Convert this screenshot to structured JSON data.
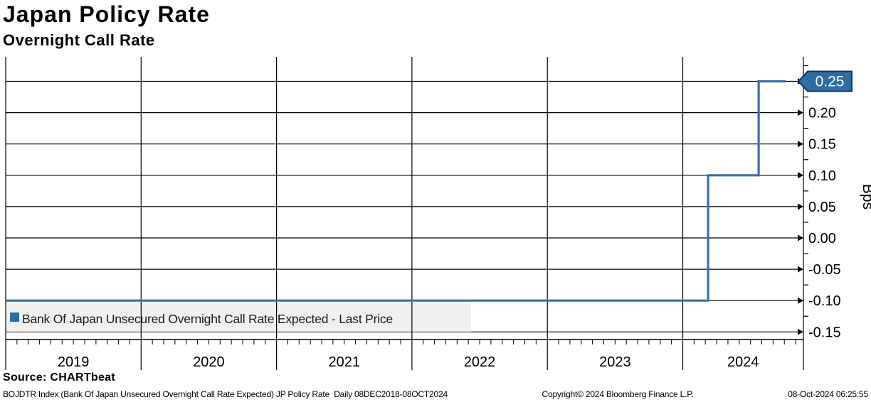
{
  "header": {
    "title": "Japan Policy Rate",
    "subtitle": "Overnight Call Rate"
  },
  "source_line": "Source: CHARTbeat",
  "footer": {
    "left": "BOJDTR Index (Bank Of Japan Unsecured Overnight Call Rate Expected) JP Policy Rate  Daily 08DEC2018-08OCT2024",
    "center": "Copyright© 2024 Bloomberg Finance L.P.",
    "right": "08-Oct-2024 06:25:55"
  },
  "chart_data": {
    "type": "line",
    "subtype": "step",
    "title": "Japan Policy Rate",
    "subtitle": "Overnight Call Rate",
    "xlabel": "",
    "ylabel": "Bps",
    "ylim": [
      -0.162,
      0.289
    ],
    "xlim_years": [
      2019.0,
      2024.89
    ],
    "grid": "both",
    "y_ticks": [
      {
        "v": 0.25,
        "label": "0.25"
      },
      {
        "v": 0.2,
        "label": "0.20"
      },
      {
        "v": 0.15,
        "label": "0.15"
      },
      {
        "v": 0.1,
        "label": "0.10"
      },
      {
        "v": 0.05,
        "label": "0.05"
      },
      {
        "v": 0.0,
        "label": "0.00"
      },
      {
        "v": -0.05,
        "label": "-0.05"
      },
      {
        "v": -0.1,
        "label": "-0.10"
      },
      {
        "v": -0.15,
        "label": "-0.15"
      }
    ],
    "x_year_labels": [
      "2019",
      "2020",
      "2021",
      "2022",
      "2023",
      "2024"
    ],
    "legend": {
      "position": "bottom-left",
      "items": [
        {
          "label": "Bank Of Japan Unsecured Overnight Call Rate Expected - Last Price",
          "color": "#2e6da4"
        }
      ]
    },
    "series": [
      {
        "name": "Bank Of Japan Unsecured Overnight Call Rate Expected - Last Price",
        "color": "#3a70a6",
        "step": true,
        "points": [
          {
            "x": 2019.0,
            "y": -0.1
          },
          {
            "x": 2024.187,
            "y": -0.1
          },
          {
            "x": 2024.187,
            "y": 0.1
          },
          {
            "x": 2024.56,
            "y": 0.1
          },
          {
            "x": 2024.56,
            "y": 0.25
          },
          {
            "x": 2024.76,
            "y": 0.25
          }
        ]
      }
    ],
    "last_price": {
      "value": "0.25",
      "fill": "#2e6da4",
      "border": "#16365d",
      "text_color": "#ffffff"
    }
  },
  "colors": {
    "grid": "#000000",
    "legend_bg": "#f0f0ef",
    "line": "#3a70a6",
    "flag_fill": "#2e6da4",
    "flag_border": "#16365d"
  }
}
